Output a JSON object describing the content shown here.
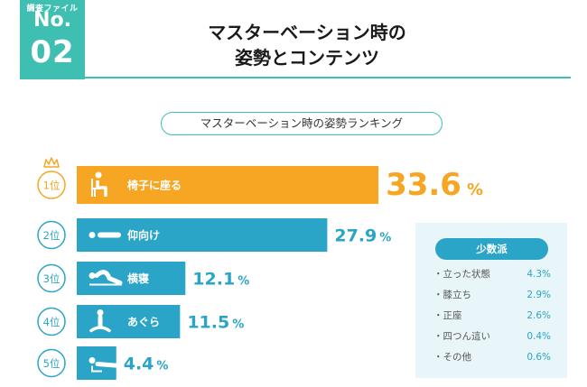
{
  "header": {
    "badge_file": "調査ファイル",
    "badge_no": "No.",
    "badge_num": "02",
    "title_line1": "マスターベーション時の",
    "title_line2": "姿勢とコンテンツ"
  },
  "subtitle": "マスターベーション時の姿勢ランキング",
  "colors": {
    "accent_teal": "#3fbfb2",
    "bar_blue": "#2aa5c7",
    "bar_orange": "#f6a623",
    "panel_bg": "#e8f5f9"
  },
  "chart_data": {
    "type": "bar",
    "orientation": "horizontal",
    "title": "マスターベーション時の姿勢ランキング",
    "categories": [
      "椅子に座る",
      "仰向け",
      "横寝",
      "あぐら",
      "うつ伏せ"
    ],
    "ranks": [
      "1位",
      "2位",
      "3位",
      "4位",
      "5位"
    ],
    "values": [
      33.6,
      27.9,
      12.1,
      11.5,
      4.4
    ],
    "value_labels": [
      "33.6",
      "27.9",
      "12.1",
      "11.5",
      "4.4"
    ],
    "unit": "%",
    "icons": [
      "chair-sitting-icon",
      "lying-on-back-icon",
      "lying-on-side-icon",
      "cross-legged-icon",
      "lying-face-down-icon"
    ],
    "highlight_first": true
  },
  "minority": {
    "header": "少数派",
    "items": [
      {
        "label": "・立った状態",
        "value": "4.3%"
      },
      {
        "label": "・膝立ち",
        "value": "2.9%"
      },
      {
        "label": "・正座",
        "value": "2.6%"
      },
      {
        "label": "・四つん這い",
        "value": "0.4%"
      },
      {
        "label": "・その他",
        "value": "0.6%"
      }
    ]
  }
}
